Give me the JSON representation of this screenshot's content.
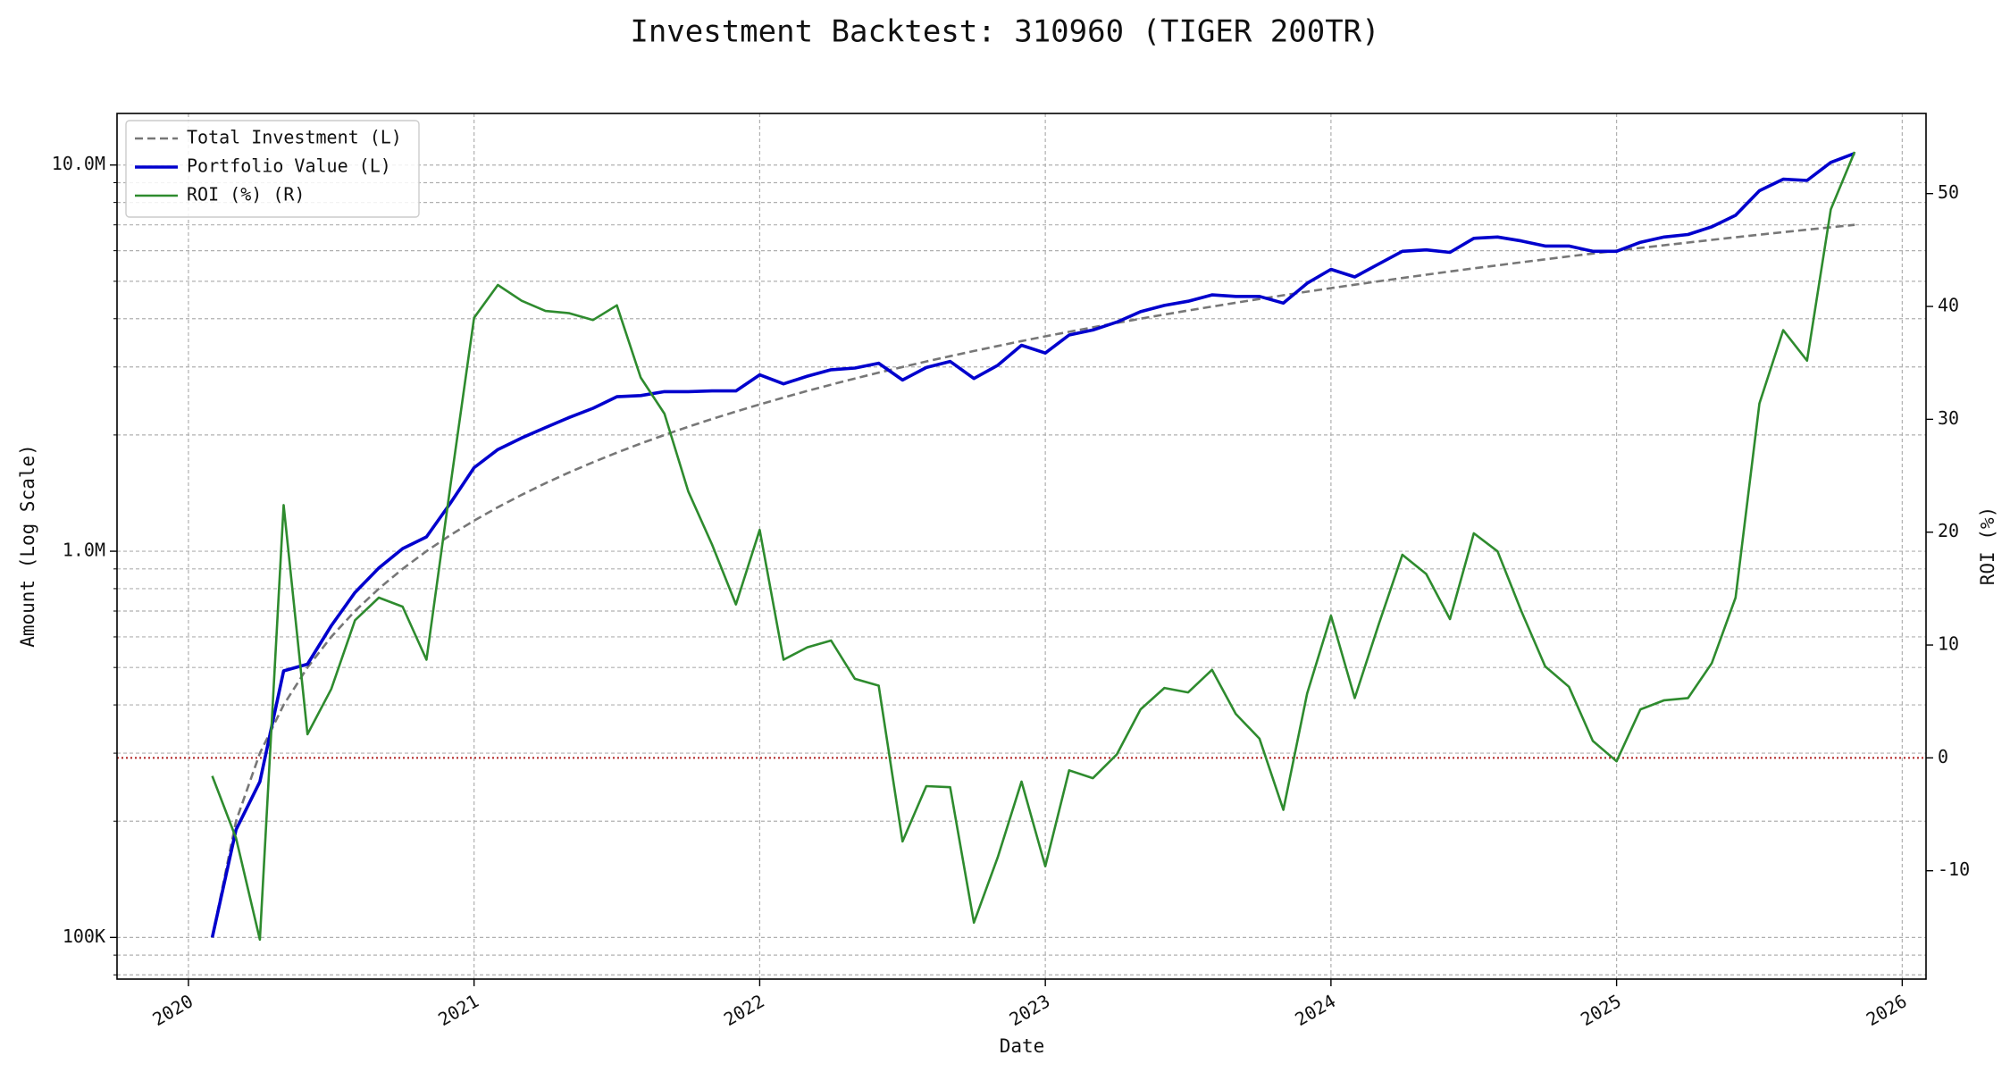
{
  "chart_data": {
    "type": "line",
    "title": "Investment Backtest: 310960 (TIGER 200TR)",
    "xlabel": "Date",
    "ylabel": "Amount (Log Scale)",
    "y2label": "ROI (%)",
    "x": [
      "2020-02",
      "2020-03",
      "2020-04",
      "2020-05",
      "2020-06",
      "2020-07",
      "2020-08",
      "2020-09",
      "2020-10",
      "2020-11",
      "2020-12",
      "2021-01",
      "2021-02",
      "2021-03",
      "2021-04",
      "2021-05",
      "2021-06",
      "2021-07",
      "2021-08",
      "2021-09",
      "2021-10",
      "2021-11",
      "2021-12",
      "2022-01",
      "2022-02",
      "2022-03",
      "2022-04",
      "2022-05",
      "2022-06",
      "2022-07",
      "2022-08",
      "2022-09",
      "2022-10",
      "2022-11",
      "2022-12",
      "2023-01",
      "2023-02",
      "2023-03",
      "2023-04",
      "2023-05",
      "2023-06",
      "2023-07",
      "2023-08",
      "2023-09",
      "2023-10",
      "2023-11",
      "2023-12",
      "2024-01",
      "2024-02",
      "2024-03",
      "2024-04",
      "2024-05",
      "2024-06",
      "2024-07",
      "2024-08",
      "2024-09",
      "2024-10",
      "2024-11",
      "2024-12",
      "2025-01",
      "2025-02",
      "2025-03",
      "2025-04",
      "2025-05",
      "2025-06",
      "2025-07",
      "2025-08",
      "2025-09",
      "2025-10",
      "2025-11"
    ],
    "series": [
      {
        "name": "Total Investment (L)",
        "color": "#777777",
        "dash": "dashed",
        "width": 2.6,
        "axis": "y",
        "values": [
          100000,
          200000,
          300000,
          400000,
          500000,
          600000,
          700000,
          800000,
          900000,
          1000000,
          1100000,
          1200000,
          1300000,
          1400000,
          1500000,
          1600000,
          1700000,
          1800000,
          1900000,
          2000000,
          2100000,
          2200000,
          2300000,
          2400000,
          2500000,
          2600000,
          2700000,
          2800000,
          2900000,
          3000000,
          3100000,
          3200000,
          3300000,
          3400000,
          3500000,
          3600000,
          3700000,
          3800000,
          3900000,
          4000000,
          4100000,
          4200000,
          4300000,
          4400000,
          4500000,
          4600000,
          4700000,
          4800000,
          4900000,
          5000000,
          5100000,
          5200000,
          5300000,
          5400000,
          5500000,
          5600000,
          5700000,
          5800000,
          5900000,
          6000000,
          6100000,
          6200000,
          6300000,
          6400000,
          6500000,
          6600000,
          6700000,
          6800000,
          6900000,
          7000000
        ]
      },
      {
        "name": "Portfolio Value (L)",
        "color": "#0000cd",
        "dash": "solid",
        "width": 3.6,
        "axis": "y",
        "values": [
          100000,
          190000,
          253000,
          490000,
          510000,
          641000,
          782000,
          905000,
          1016000,
          1089000,
          1330000,
          1646000,
          1834000,
          1965000,
          2090000,
          2220000,
          2345000,
          2512000,
          2530000,
          2590000,
          2590000,
          2600000,
          2600000,
          2863000,
          2712000,
          2840000,
          2950000,
          2980000,
          3067000,
          2775000,
          2990000,
          3100000,
          2800000,
          3030000,
          3415000,
          3260000,
          3630000,
          3740000,
          3920000,
          4170000,
          4330000,
          4440000,
          4610000,
          4570000,
          4570000,
          4390000,
          4940000,
          5370000,
          5130000,
          5540000,
          5980000,
          6030000,
          5940000,
          6460000,
          6510000,
          6360000,
          6170000,
          6170000,
          5980000,
          5980000,
          6310000,
          6510000,
          6610000,
          6920000,
          7410000,
          8580000,
          9190000,
          9120000,
          10160000,
          10720000
        ]
      },
      {
        "name": "ROI (%) (R)",
        "color": "#2e8b2e",
        "dash": "solid",
        "width": 2.6,
        "axis": "y2",
        "values": [
          -1.6,
          -7.1,
          -16.1,
          22.4,
          2.1,
          6.1,
          12.2,
          14.2,
          13.4,
          8.7,
          24,
          39.0,
          41.9,
          40.5,
          39.6,
          39.4,
          38.8,
          40.1,
          33.7,
          30.5,
          23.6,
          18.9,
          13.6,
          20.2,
          8.7,
          9.8,
          10.4,
          7.0,
          6.4,
          -7.4,
          -2.5,
          -2.6,
          -14.6,
          -8.8,
          -2.1,
          -9.6,
          -1.1,
          -1.8,
          0.3,
          4.3,
          6.2,
          5.8,
          7.8,
          3.9,
          1.7,
          -4.6,
          5.7,
          12.6,
          5.3,
          11.8,
          18.0,
          16.3,
          12.3,
          19.9,
          18.3,
          13.0,
          8.1,
          6.3,
          1.5,
          -0.3,
          4.3,
          5.1,
          5.3,
          8.4,
          14.2,
          31.4,
          37.9,
          35.2,
          48.6,
          53.7
        ]
      }
    ],
    "xlim": [
      "2019-10",
      "2026-02"
    ],
    "xticks": [
      2020,
      2021,
      2022,
      2023,
      2024,
      2025,
      2026
    ],
    "ylog": true,
    "ylim": [
      78000,
      13600000
    ],
    "yticks": [
      {
        "value": 100000,
        "label": "100K"
      },
      {
        "value": 1000000,
        "label": "1.0M"
      },
      {
        "value": 10000000,
        "label": "10.0M"
      }
    ],
    "yminorticks": [
      80000,
      90000,
      200000,
      300000,
      400000,
      500000,
      600000,
      700000,
      800000,
      900000,
      2000000,
      3000000,
      4000000,
      5000000,
      6000000,
      7000000,
      8000000,
      9000000
    ],
    "y2lim": [
      -19.6,
      57.1
    ],
    "y2ticks": [
      -10,
      0,
      10,
      20,
      30,
      40,
      50
    ],
    "reference_line": {
      "axis": "y2",
      "value": 0,
      "color": "#b22222"
    },
    "grid": true,
    "legend": "upper left",
    "ycolor": "#0000cd",
    "y2color": "#2e8b2e"
  }
}
